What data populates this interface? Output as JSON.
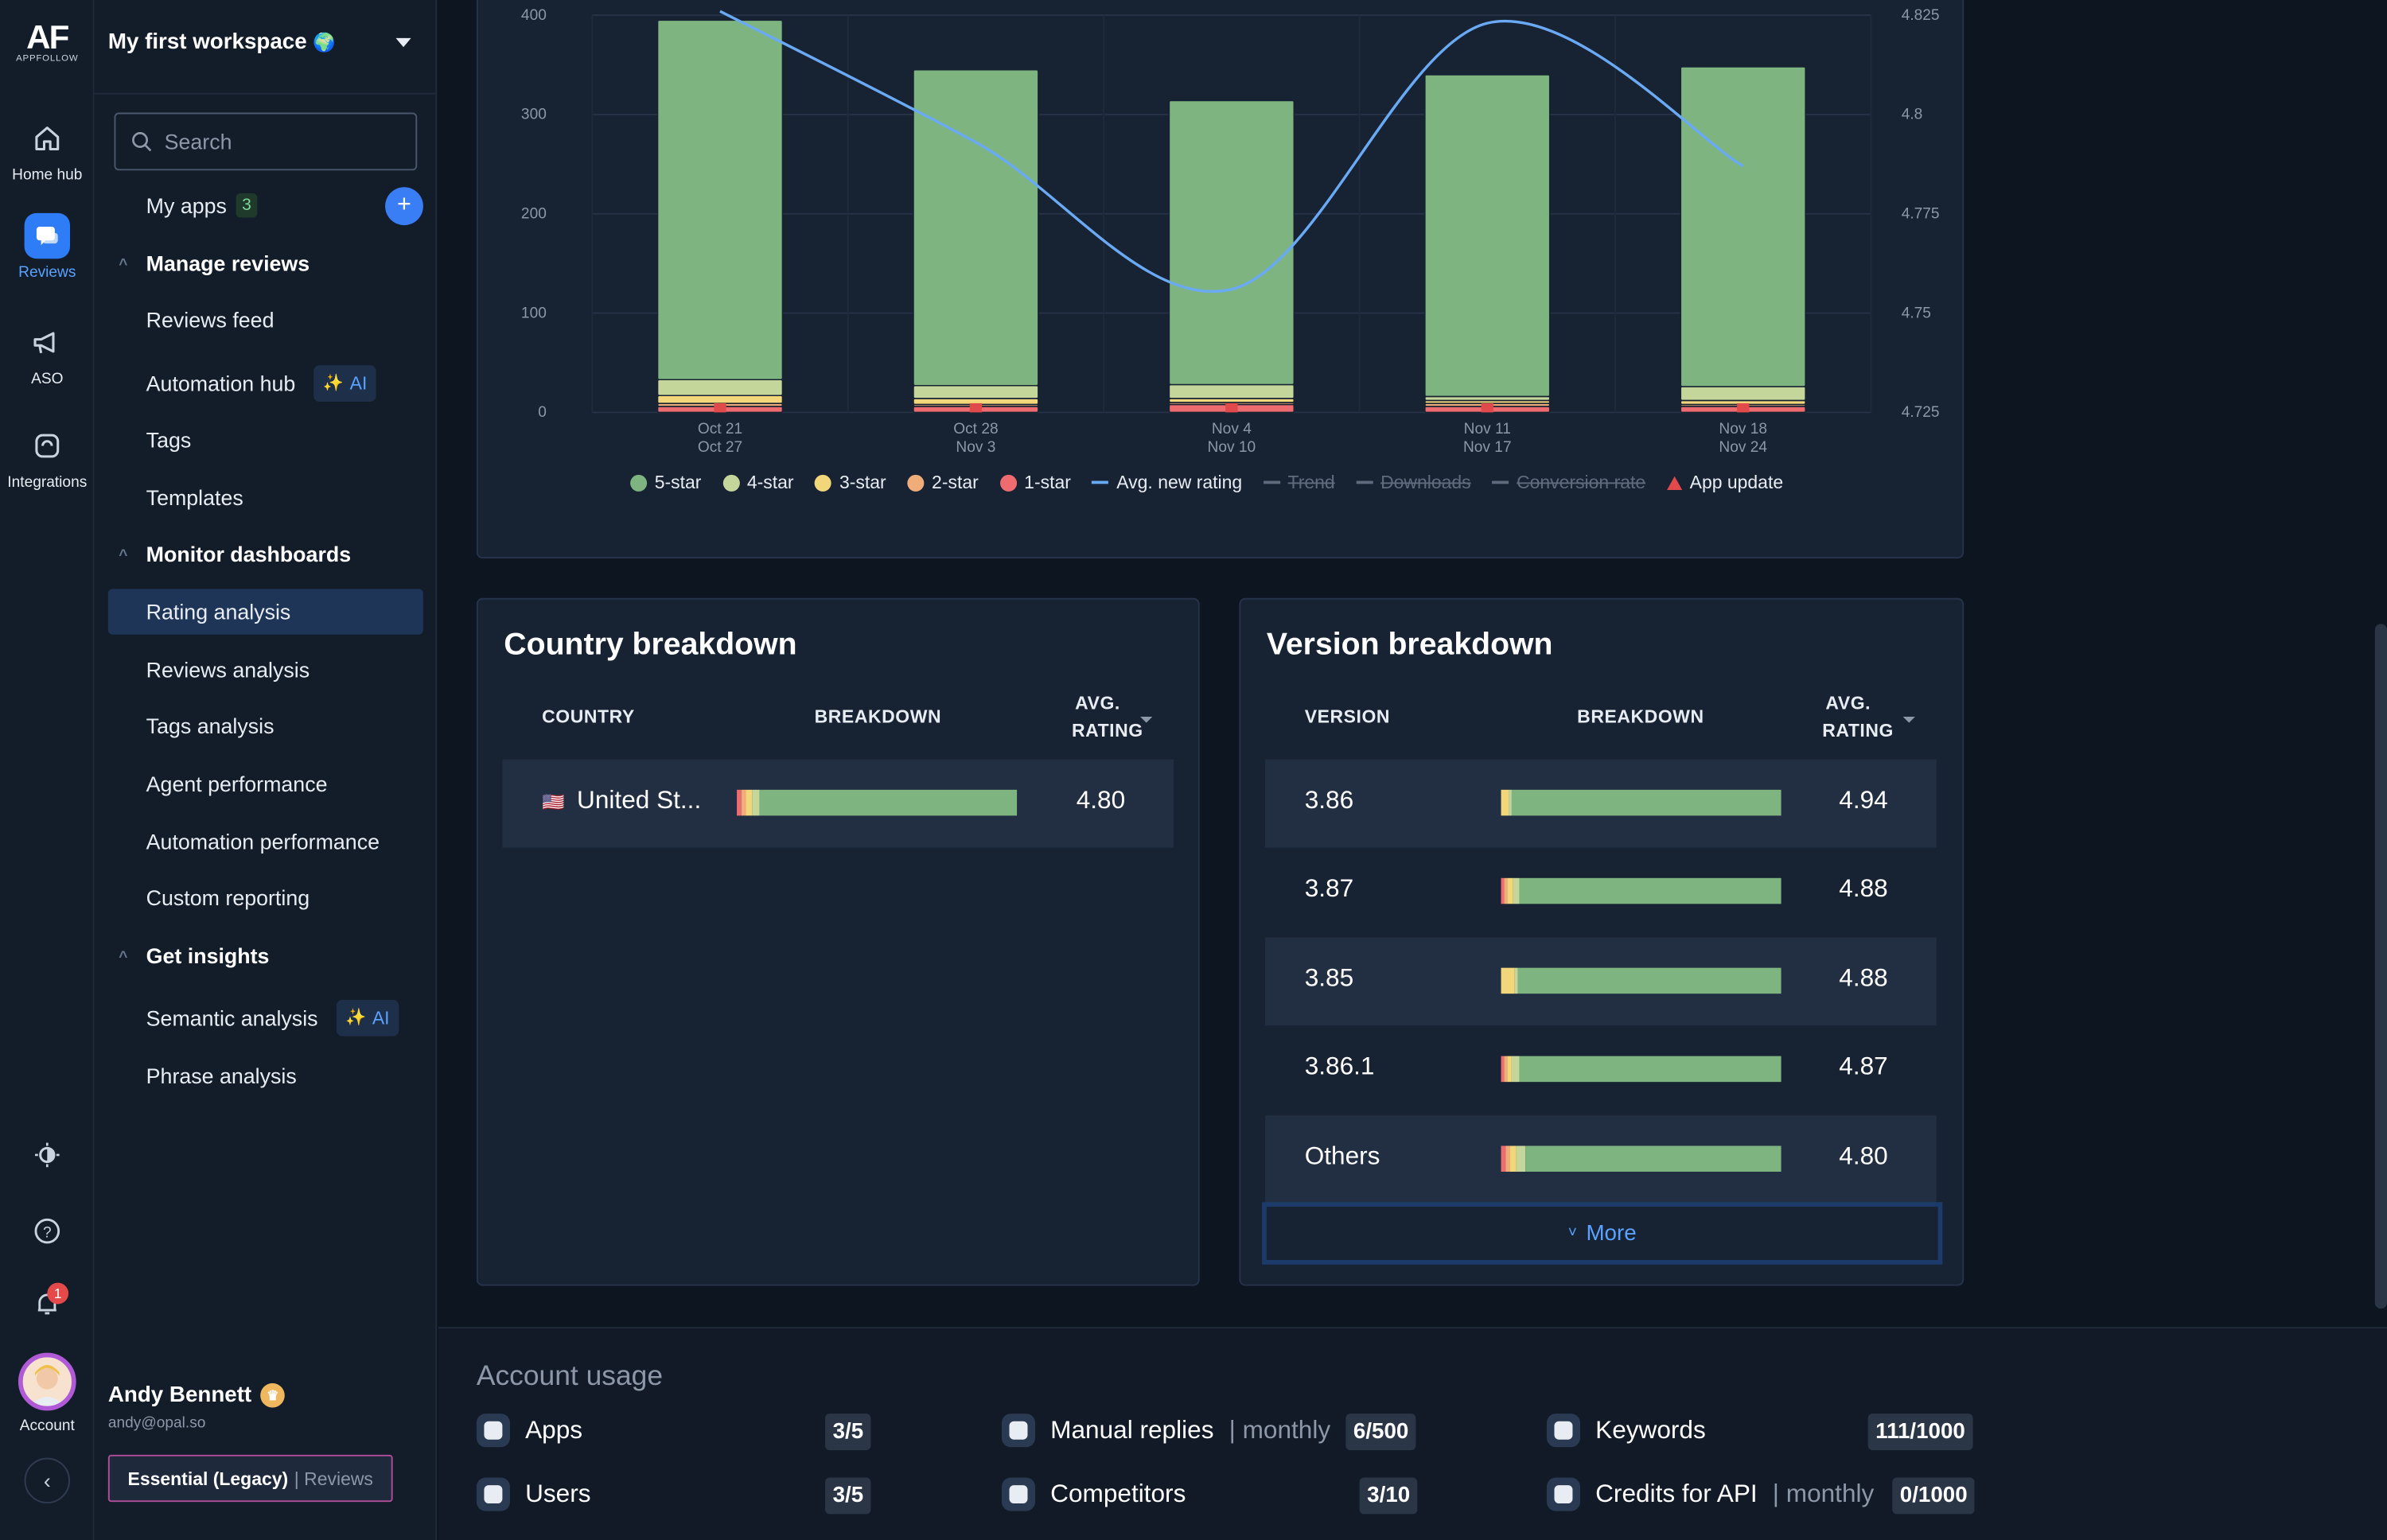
{
  "rail": {
    "logo": "AF",
    "logo_sub": "APPFOLLOW",
    "items": [
      "Home hub",
      "Reviews",
      "ASO",
      "Integrations"
    ],
    "notification_count": "1",
    "account_label": "Account"
  },
  "nav": {
    "workspace": "My first workspace",
    "search_placeholder": "Search",
    "my_apps": "My apps",
    "my_apps_count": "3",
    "sections": {
      "manage": "Manage reviews",
      "monitor": "Monitor dashboards",
      "insights": "Get insights"
    },
    "items": {
      "reviews_feed": "Reviews feed",
      "automation_hub": "Automation hub",
      "tags": "Tags",
      "templates": "Templates",
      "rating_analysis": "Rating analysis",
      "reviews_analysis": "Reviews analysis",
      "tags_analysis": "Tags analysis",
      "agent_performance": "Agent performance",
      "automation_performance": "Automation performance",
      "custom_reporting": "Custom reporting",
      "semantic_analysis": "Semantic analysis",
      "phrase_analysis": "Phrase analysis"
    },
    "ai_label": "AI",
    "user_name": "Andy Bennett",
    "user_email": "andy@opal.so",
    "plan": "Essential (Legacy)",
    "plan_suffix": "| Reviews"
  },
  "chart_data": {
    "type": "bar",
    "categories": [
      "Oct 21\nOct 27",
      "Oct 28\nNov 3",
      "Nov 4\nNov 10",
      "Nov 11\nNov 17",
      "Nov 18\nNov 24"
    ],
    "category_top": [
      "Oct 21",
      "Oct 28",
      "Nov 4",
      "Nov 11",
      "Nov 18"
    ],
    "category_bottom": [
      "Oct 27",
      "Nov 3",
      "Nov 10",
      "Nov 17",
      "Nov 24"
    ],
    "y_left_ticks": [
      "400",
      "300",
      "200",
      "100",
      "0"
    ],
    "y_right_ticks": [
      "4.825",
      "4.8",
      "4.775",
      "4.75",
      "4.725"
    ],
    "ylim": [
      0,
      400
    ],
    "y2lim": [
      4.725,
      4.825
    ],
    "series": [
      {
        "name": "5-star",
        "color": "#7db47f",
        "values": [
          362,
          318,
          286,
          324,
          322
        ]
      },
      {
        "name": "4-star",
        "color": "#c5d69a",
        "values": [
          16,
          13,
          14,
          4,
          14
        ]
      },
      {
        "name": "3-star",
        "color": "#f2d67a",
        "values": [
          8,
          6,
          4,
          3,
          4
        ]
      },
      {
        "name": "2-star",
        "color": "#f0ad7a",
        "values": [
          3,
          2,
          2,
          3,
          2
        ]
      },
      {
        "name": "1-star",
        "color": "#ee6b6f",
        "values": [
          6,
          6,
          8,
          6,
          6
        ]
      }
    ],
    "line_series": {
      "name": "Avg. new rating",
      "color": "#6aaaf5",
      "values": [
        4.826,
        4.793,
        4.756,
        4.823,
        4.787
      ]
    },
    "app_update_at": [
      0,
      1,
      2,
      3,
      4
    ],
    "legend": [
      "5-star",
      "4-star",
      "3-star",
      "2-star",
      "1-star",
      "Avg. new rating",
      "Trend",
      "Downloads",
      "Conversion rate",
      "App update"
    ]
  },
  "country": {
    "title": "Country breakdown",
    "col_country": "COUNTRY",
    "col_breakdown": "BREAKDOWN",
    "col_rating_1": "AVG.",
    "col_rating_2": "RATING",
    "rows": [
      {
        "name": "United St...",
        "rating": "4.80",
        "flag": "🇺🇸"
      }
    ]
  },
  "version": {
    "title": "Version breakdown",
    "col_version": "VERSION",
    "col_breakdown": "BREAKDOWN",
    "col_rating_1": "AVG.",
    "col_rating_2": "RATING",
    "rows": [
      {
        "name": "3.86",
        "rating": "4.94"
      },
      {
        "name": "3.87",
        "rating": "4.88"
      },
      {
        "name": "3.85",
        "rating": "4.88"
      },
      {
        "name": "3.86.1",
        "rating": "4.87"
      },
      {
        "name": "Others",
        "rating": "4.80"
      }
    ],
    "more": "More"
  },
  "usage": {
    "title": "Account usage",
    "apps": "Apps",
    "apps_count": "3/5",
    "users": "Users",
    "users_count": "3/5",
    "manual_replies": "Manual replies",
    "manual_replies_period": "| monthly",
    "manual_replies_count": "6/500",
    "competitors": "Competitors",
    "competitors_count": "3/10",
    "keywords": "Keywords",
    "keywords_count": "111/1000",
    "credits": "Credits for API",
    "credits_period": "| monthly",
    "credits_count": "0/1000"
  }
}
